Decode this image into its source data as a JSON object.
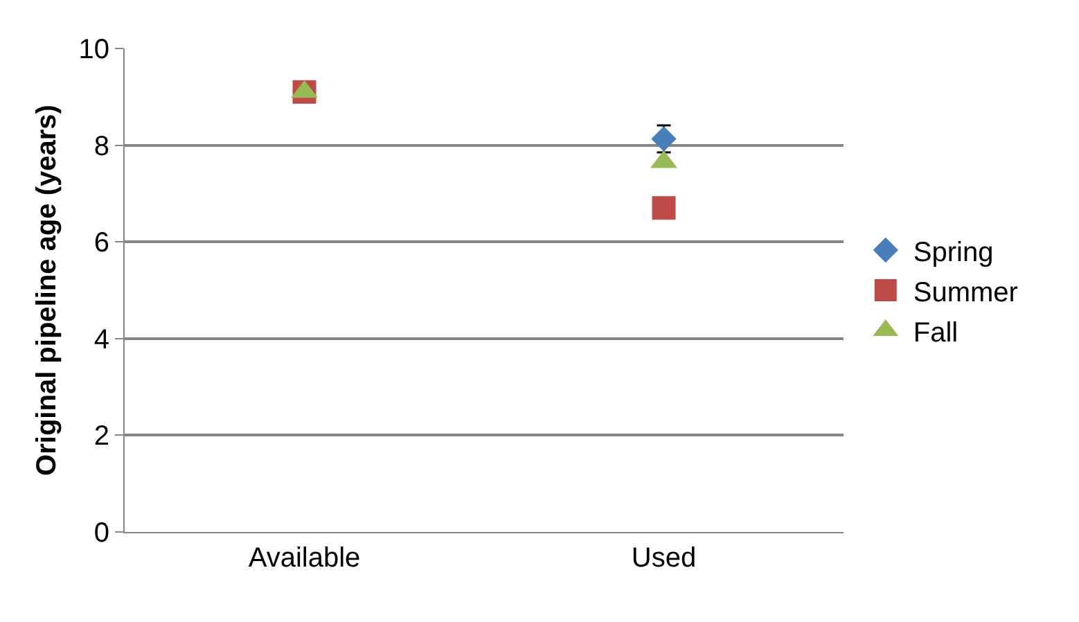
{
  "chart_data": {
    "type": "scatter",
    "ylabel": "Original pipeline age (years)",
    "categories": [
      "Available",
      "Used"
    ],
    "series": [
      {
        "name": "Spring",
        "color": "#4a7ebb",
        "marker": "diamond",
        "values": [
          null,
          8.13
        ],
        "errors": [
          null,
          0.28
        ]
      },
      {
        "name": "Summer",
        "color": "#be4b48",
        "marker": "square",
        "values": [
          9.1,
          6.7
        ]
      },
      {
        "name": "Fall",
        "color": "#98b954",
        "marker": "triangle",
        "values": [
          9.1,
          7.65
        ]
      }
    ],
    "ylim": [
      0,
      10
    ],
    "yticks": [
      0,
      2,
      4,
      6,
      8,
      10
    ],
    "grid": "y",
    "legend": "right"
  }
}
